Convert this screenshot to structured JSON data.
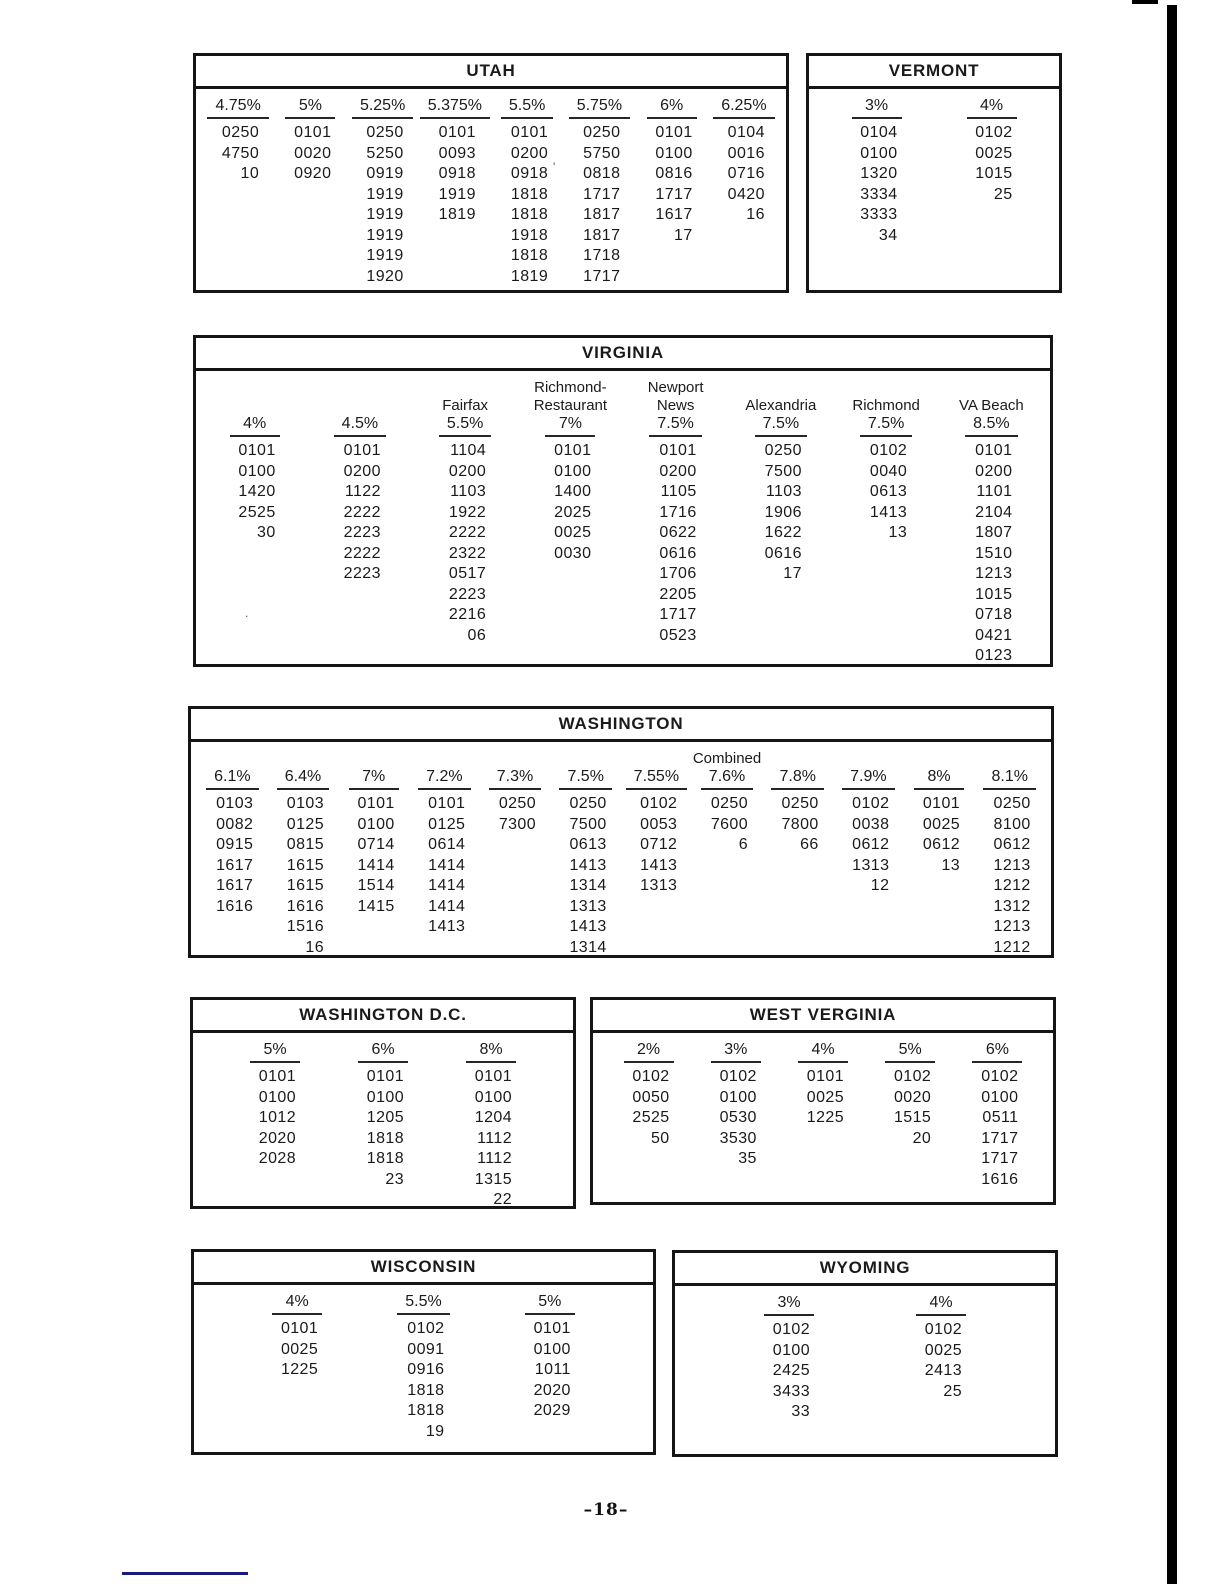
{
  "page": {
    "number_label": "–18–"
  },
  "colors": {
    "ink": "#1a1a1a",
    "scan_bar_black": "#000000",
    "footer_rule_navy": "#1a1a7e"
  },
  "tables": {
    "utah": {
      "title": "UTAH",
      "columns": [
        {
          "rate": "4.75%",
          "values": [
            "0250",
            "4750",
            "10"
          ]
        },
        {
          "rate": "5%",
          "values": [
            "0101",
            "0020",
            "0920"
          ]
        },
        {
          "rate": "5.25%",
          "values": [
            "0250",
            "5250",
            "0919",
            "1919",
            "1919",
            "1919",
            "1919",
            "1920"
          ]
        },
        {
          "rate": "5.375%",
          "values": [
            "0101",
            "0093",
            "0918",
            "1919",
            "1819"
          ]
        },
        {
          "rate": "5.5%",
          "values": [
            "0101",
            "0200",
            "0918",
            "1818",
            "1818",
            "1918",
            "1818",
            "1819"
          ]
        },
        {
          "rate": "5.75%",
          "values": [
            "0250",
            "5750",
            "0818",
            "1717",
            "1817",
            "1817",
            "1718",
            "1717"
          ]
        },
        {
          "rate": "6%",
          "values": [
            "0101",
            "0100",
            "0816",
            "1717",
            "1617",
            "17"
          ]
        },
        {
          "rate": "6.25%",
          "values": [
            "0104",
            "0016",
            "0716",
            "0420",
            "16"
          ]
        }
      ]
    },
    "vermont": {
      "title": "VERMONT",
      "columns": [
        {
          "rate": "3%",
          "values": [
            "0104",
            "0100",
            "1320",
            "3334",
            "3333",
            "34"
          ]
        },
        {
          "rate": "4%",
          "values": [
            "0102",
            "0025",
            "1015",
            "25"
          ]
        }
      ]
    },
    "virginia": {
      "title": "VIRGINIA",
      "columns": [
        {
          "rate": "4%",
          "values": [
            "0101",
            "0100",
            "1420",
            "2525",
            "30"
          ]
        },
        {
          "rate": "4.5%",
          "values": [
            "0101",
            "0200",
            "1122",
            "2222",
            "2223",
            "2222",
            "2223"
          ]
        },
        {
          "header": [
            "Fairfax"
          ],
          "rate": "5.5%",
          "values": [
            "1104",
            "0200",
            "1103",
            "1922",
            "2222",
            "2322",
            "0517",
            "2223",
            "2216",
            "06"
          ]
        },
        {
          "header": [
            "Richmond-",
            "Restaurant"
          ],
          "rate": "7%",
          "values": [
            "0101",
            "0100",
            "1400",
            "2025",
            "0025",
            "0030"
          ]
        },
        {
          "header": [
            "Newport",
            "News"
          ],
          "rate": "7.5%",
          "values": [
            "0101",
            "0200",
            "1105",
            "1716",
            "0622",
            "0616",
            "1706",
            "2205",
            "1717",
            "0523"
          ]
        },
        {
          "header": [
            "Alexandria"
          ],
          "rate": "7.5%",
          "values": [
            "0250",
            "7500",
            "1103",
            "1906",
            "1622",
            "0616",
            "17"
          ]
        },
        {
          "header": [
            "Richmond"
          ],
          "rate": "7.5%",
          "values": [
            "0102",
            "0040",
            "0613",
            "1413",
            "13"
          ]
        },
        {
          "header": [
            "VA Beach"
          ],
          "rate": "8.5%",
          "values": [
            "0101",
            "0200",
            "1101",
            "2104",
            "1807",
            "1510",
            "1213",
            "1015",
            "0718",
            "0421",
            "0123"
          ]
        }
      ]
    },
    "washington": {
      "title": "WASHINGTON",
      "columns": [
        {
          "rate": "6.1%",
          "values": [
            "0103",
            "0082",
            "0915",
            "1617",
            "1617",
            "1616"
          ]
        },
        {
          "rate": "6.4%",
          "values": [
            "0103",
            "0125",
            "0815",
            "1615",
            "1615",
            "1616",
            "1516",
            "16"
          ]
        },
        {
          "rate": "7%",
          "values": [
            "0101",
            "0100",
            "0714",
            "1414",
            "1514",
            "1415"
          ]
        },
        {
          "rate": "7.2%",
          "values": [
            "0101",
            "0125",
            "0614",
            "1414",
            "1414",
            "1414",
            "1413"
          ]
        },
        {
          "rate": "7.3%",
          "values": [
            "0250",
            "7300"
          ]
        },
        {
          "rate": "7.5%",
          "values": [
            "0250",
            "7500",
            "0613",
            "1413",
            "1314",
            "1313",
            "1413",
            "1314"
          ]
        },
        {
          "rate": "7.55%",
          "values": [
            "0102",
            "0053",
            "0712",
            "1413",
            "1313"
          ]
        },
        {
          "header": [
            "Combined"
          ],
          "rate": "7.6%",
          "values": [
            "0250",
            "7600",
            "6"
          ]
        },
        {
          "rate": "7.8%",
          "values": [
            "0250",
            "7800",
            "66"
          ]
        },
        {
          "rate": "7.9%",
          "values": [
            "0102",
            "0038",
            "0612",
            "1313",
            "12"
          ]
        },
        {
          "rate": "8%",
          "values": [
            "0101",
            "0025",
            "0612",
            "13"
          ]
        },
        {
          "rate": "8.1%",
          "values": [
            "0250",
            "8100",
            "0612",
            "1213",
            "1212",
            "1312",
            "1213",
            "1212"
          ]
        }
      ]
    },
    "washington_dc": {
      "title": "WASHINGTON D.C.",
      "columns": [
        {
          "rate": "5%",
          "values": [
            "0101",
            "0100",
            "1012",
            "2020",
            "2028"
          ]
        },
        {
          "rate": "6%",
          "values": [
            "0101",
            "0100",
            "1205",
            "1818",
            "1818",
            "23"
          ]
        },
        {
          "rate": "8%",
          "values": [
            "0101",
            "0100",
            "1204",
            "1112",
            "1112",
            "1315",
            "22"
          ]
        }
      ]
    },
    "west_verginia": {
      "title": "WEST VERGINIA",
      "columns": [
        {
          "rate": "2%",
          "values": [
            "0102",
            "0050",
            "2525",
            "50"
          ]
        },
        {
          "rate": "3%",
          "values": [
            "0102",
            "0100",
            "0530",
            "3530",
            "35"
          ]
        },
        {
          "rate": "4%",
          "values": [
            "0101",
            "0025",
            "1225"
          ]
        },
        {
          "rate": "5%",
          "values": [
            "0102",
            "0020",
            "1515",
            "20"
          ]
        },
        {
          "rate": "6%",
          "values": [
            "0102",
            "0100",
            "0511",
            "1717",
            "1717",
            "1616"
          ]
        }
      ]
    },
    "wisconsin": {
      "title": "WISCONSIN",
      "columns": [
        {
          "rate": "4%",
          "values": [
            "0101",
            "0025",
            "1225"
          ]
        },
        {
          "rate": "5.5%",
          "values": [
            "0102",
            "0091",
            "0916",
            "1818",
            "1818",
            "19"
          ]
        },
        {
          "rate": "5%",
          "values": [
            "0101",
            "0100",
            "1011",
            "2020",
            "2029"
          ]
        }
      ]
    },
    "wyoming": {
      "title": "WYOMING",
      "columns": [
        {
          "rate": "3%",
          "values": [
            "0102",
            "0100",
            "2425",
            "3433",
            "33"
          ]
        },
        {
          "rate": "4%",
          "values": [
            "0102",
            "0025",
            "2413",
            "25"
          ]
        }
      ]
    }
  }
}
